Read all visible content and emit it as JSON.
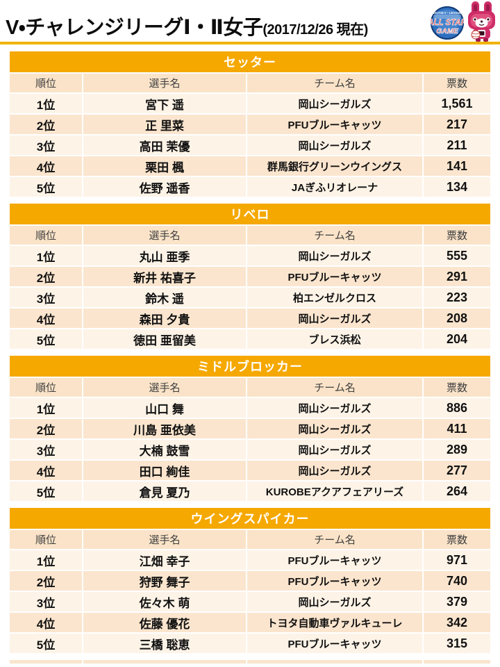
{
  "header": {
    "title": "V・チャレンジリーグⅠ・Ⅱ女子",
    "subtitle": "(2017/12/26 現在)",
    "badge": {
      "line1": "ALL STAR",
      "line2": "GAME"
    }
  },
  "columns": [
    "順位",
    "選手名",
    "チーム名",
    "票数"
  ],
  "sections": [
    {
      "title": "セッター",
      "rows": [
        {
          "rank": "1位",
          "player": "宮下 遥",
          "team": "岡山シーガルズ",
          "votes": "1,561"
        },
        {
          "rank": "2位",
          "player": "正 里菜",
          "team": "PFUブルーキャッツ",
          "votes": "217"
        },
        {
          "rank": "3位",
          "player": "高田 茉優",
          "team": "岡山シーガルズ",
          "votes": "211"
        },
        {
          "rank": "4位",
          "player": "栗田 楓",
          "team": "群馬銀行グリーンウイングス",
          "votes": "141"
        },
        {
          "rank": "5位",
          "player": "佐野 遥香",
          "team": "JAぎふリオレーナ",
          "votes": "134"
        }
      ]
    },
    {
      "title": "リベロ",
      "rows": [
        {
          "rank": "1位",
          "player": "丸山 亜季",
          "team": "岡山シーガルズ",
          "votes": "555"
        },
        {
          "rank": "2位",
          "player": "新井 祐喜子",
          "team": "PFUブルーキャッツ",
          "votes": "291"
        },
        {
          "rank": "3位",
          "player": "鈴木 遥",
          "team": "柏エンゼルクロス",
          "votes": "223"
        },
        {
          "rank": "4位",
          "player": "森田 夕貴",
          "team": "岡山シーガルズ",
          "votes": "208"
        },
        {
          "rank": "5位",
          "player": "徳田 亜留美",
          "team": "ブレス浜松",
          "votes": "204"
        }
      ]
    },
    {
      "title": "ミドルブロッカー",
      "rows": [
        {
          "rank": "1位",
          "player": "山口 舞",
          "team": "岡山シーガルズ",
          "votes": "886"
        },
        {
          "rank": "2位",
          "player": "川島 亜依美",
          "team": "岡山シーガルズ",
          "votes": "411"
        },
        {
          "rank": "3位",
          "player": "大楠 鼓雪",
          "team": "岡山シーガルズ",
          "votes": "289"
        },
        {
          "rank": "4位",
          "player": "田口 絢佳",
          "team": "岡山シーガルズ",
          "votes": "277"
        },
        {
          "rank": "5位",
          "player": "倉見 夏乃",
          "team": "KUROBEアクアフェアリーズ",
          "votes": "264"
        }
      ]
    },
    {
      "title": "ウイングスパイカー",
      "rows": [
        {
          "rank": "1位",
          "player": "江畑 幸子",
          "team": "PFUブルーキャッツ",
          "votes": "971"
        },
        {
          "rank": "2位",
          "player": "狩野 舞子",
          "team": "PFUブルーキャッツ",
          "votes": "740"
        },
        {
          "rank": "3位",
          "player": "佐々木 萌",
          "team": "岡山シーガルズ",
          "votes": "379"
        },
        {
          "rank": "4位",
          "player": "佐藤 優花",
          "team": "トヨタ自動車ヴァルキューレ",
          "votes": "342"
        },
        {
          "rank": "5位",
          "player": "三橋 聡恵",
          "team": "PFUブルーキャッツ",
          "votes": "315"
        }
      ]
    }
  ],
  "colors": {
    "band": "#f5a800",
    "header_row": "#fae3c8",
    "row_odd": "#fdf3e7",
    "row_even": "#fbe5ce",
    "rule": "#f0b400",
    "badge_blue": "#2e6fbf",
    "badge_red": "#d63031",
    "mascot_pink": "#ce2d67"
  }
}
